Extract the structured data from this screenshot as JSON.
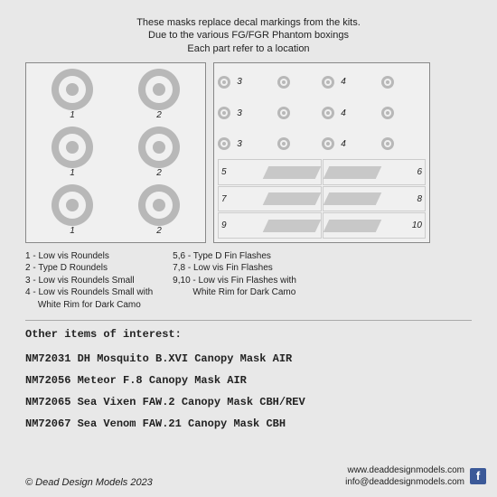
{
  "header": {
    "line1": "These masks replace decal markings from the kits.",
    "line2": "Due to the various FG/FGR Phantom boxings",
    "line3": "Each part refer to a location"
  },
  "left_box": {
    "cells": [
      {
        "label": "1"
      },
      {
        "label": "2"
      },
      {
        "label": "1"
      },
      {
        "label": "2"
      },
      {
        "label": "1"
      },
      {
        "label": "2"
      }
    ],
    "roundel_style": {
      "outer": "#b8b8b8",
      "mid": "#f0f0f0",
      "inner": "#b8b8b8",
      "size": 46
    }
  },
  "right_box": {
    "small_rows": [
      {
        "l_num": "3",
        "r_num": "4"
      },
      {
        "l_num": "3",
        "r_num": "4"
      },
      {
        "l_num": "3",
        "r_num": "4"
      }
    ],
    "flash_rows": [
      {
        "l": "5",
        "r": "6"
      },
      {
        "l": "7",
        "r": "8"
      },
      {
        "l": "9",
        "r": "10"
      }
    ],
    "flash_style": {
      "fill": "#c8c8c8",
      "skew": -25
    }
  },
  "legend": {
    "left": [
      "1 - Low vis Roundels",
      "2 - Type D Roundels",
      "3 - Low vis Roundels Small",
      "4 - Low vis Roundels Small with",
      "     White Rim for Dark Camo"
    ],
    "right": [
      "5,6 - Type D Fin Flashes",
      "7,8 - Low vis Fin Flashes",
      "9,10 - Low vis Fin Flashes with",
      "        White Rim for Dark Camo"
    ]
  },
  "other": {
    "title": "Other items of interest:",
    "items": [
      "NM72031 DH Mosquito B.XVI Canopy Mask AIR",
      "NM72056 Meteor F.8 Canopy Mask AIR",
      "NM72065 Sea Vixen FAW.2 Canopy Mask CBH/REV",
      "NM72067 Sea Venom FAW.21 Canopy Mask CBH"
    ]
  },
  "footer": {
    "copyright": "© Dead Design Models 2023",
    "site": "www.deaddesignmodels.com",
    "email": "info@deaddesignmodels.com",
    "fb": "f"
  },
  "colors": {
    "bg": "#e8e8e8",
    "box_bg": "#f0f0f0",
    "box_border": "#888",
    "text": "#222",
    "flash": "#c8c8c8",
    "fb": "#3b5998"
  }
}
